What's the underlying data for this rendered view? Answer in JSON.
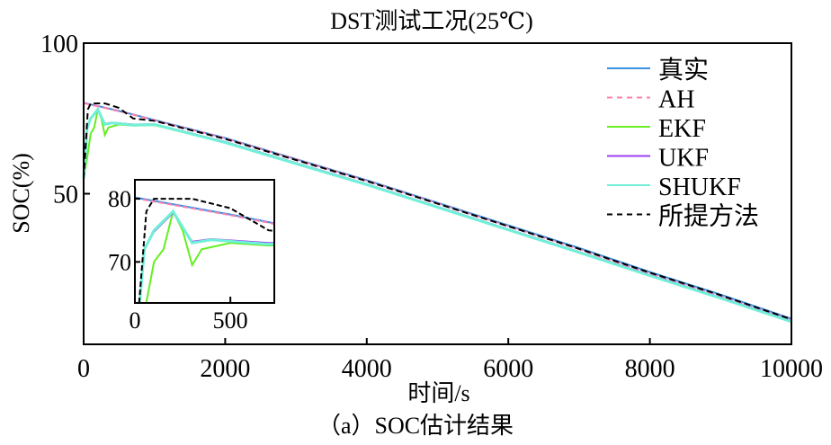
{
  "chart_data": {
    "type": "line",
    "title": "DST测试工况(25℃)",
    "xlabel": "时间/s",
    "ylabel": "SOC(%)",
    "caption": "（a）SOC估计结果",
    "xlim": [
      0,
      10000
    ],
    "ylim": [
      0,
      100
    ],
    "xticks": [
      0,
      2000,
      4000,
      6000,
      8000,
      10000
    ],
    "yticks": [
      50,
      100
    ],
    "legend_position": "top-right",
    "grid": false,
    "series": [
      {
        "name": "真实",
        "color": "#3b8fe0",
        "dash": "solid",
        "x": [
          0,
          500,
          1000,
          2000,
          3000,
          4000,
          5000,
          6000,
          7000,
          8000,
          9000,
          10000
        ],
        "y": [
          80.2,
          77.5,
          74.5,
          68.5,
          61.5,
          54.5,
          47,
          39.5,
          32,
          24,
          16.5,
          8.5
        ]
      },
      {
        "name": "AH",
        "color": "#ff7fb0",
        "dash": "dashed",
        "x": [
          0,
          500,
          1000,
          2000,
          3000,
          4000,
          5000,
          6000,
          7000,
          8000,
          9000,
          10000
        ],
        "y": [
          80.1,
          77.4,
          74.4,
          68.4,
          61.4,
          54.3,
          46.8,
          39.2,
          31.6,
          23.4,
          15.8,
          8
        ]
      },
      {
        "name": "EKF",
        "color": "#66ee22",
        "dash": "solid",
        "x": [
          0,
          50,
          100,
          150,
          200,
          250,
          300,
          350,
          500,
          700,
          1000,
          2000,
          3000,
          4000,
          5000,
          6000,
          7000,
          8000,
          9000,
          10000
        ],
        "y": [
          55,
          62,
          70,
          72,
          78,
          75,
          69.5,
          72,
          73,
          72.6,
          72.8,
          67,
          60,
          53,
          45.5,
          38,
          30.5,
          22.8,
          15.3,
          7.5
        ]
      },
      {
        "name": "UKF",
        "color": "#9a40f0",
        "dash": "solid",
        "x": [
          0,
          50,
          100,
          200,
          300,
          400,
          700,
          1000,
          2000,
          3000,
          4000,
          5000,
          6000,
          7000,
          8000,
          9000,
          10000
        ],
        "y": [
          55,
          72,
          74.8,
          77.8,
          73.2,
          73.6,
          73,
          73.1,
          67.2,
          60.2,
          53.2,
          45.7,
          38.2,
          30.7,
          23,
          15.5,
          7.7
        ]
      },
      {
        "name": "SHUKF",
        "color": "#70f0d8",
        "dash": "solid",
        "x": [
          0,
          50,
          100,
          200,
          300,
          400,
          700,
          1000,
          2000,
          3000,
          4000,
          5000,
          6000,
          7000,
          8000,
          9000,
          10000
        ],
        "y": [
          55,
          72,
          75,
          78,
          73,
          73.5,
          72.8,
          73,
          67,
          60,
          53,
          45.5,
          38,
          30.5,
          22.8,
          15.3,
          7.5
        ]
      },
      {
        "name": "所提方法",
        "color": "#000000",
        "dash": "dashed",
        "x": [
          0,
          60,
          100,
          300,
          500,
          700,
          1000,
          2000,
          3000,
          4000,
          5000,
          6000,
          7000,
          8000,
          9000,
          10000
        ],
        "y": [
          55,
          78,
          80,
          80,
          78.5,
          75,
          74.2,
          68.2,
          61.2,
          54.2,
          46.7,
          39.2,
          31.7,
          23.8,
          16.3,
          8.3
        ]
      }
    ],
    "inset": {
      "xlim": [
        0,
        730
      ],
      "ylim": [
        63.5,
        83
      ],
      "xticks": [
        0,
        500
      ],
      "yticks": [
        70,
        80
      ]
    }
  }
}
